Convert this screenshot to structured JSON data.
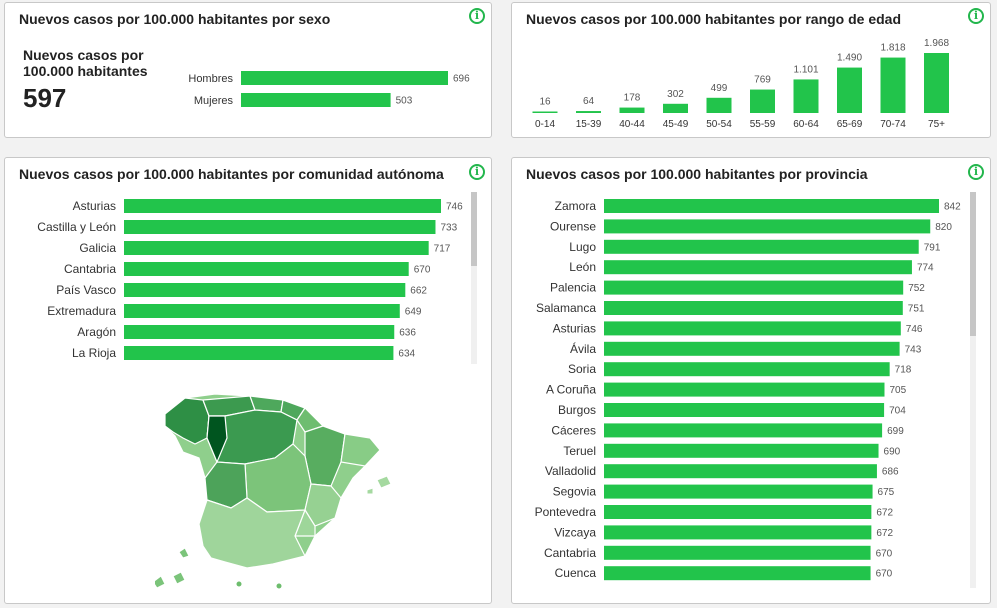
{
  "colors": {
    "bar": "#22c44b",
    "accent": "#22b64c",
    "map_dark": "#00551f",
    "map_light": "#c6e5c0"
  },
  "panels": {
    "sexo": {
      "title": "Nuevos casos por 100.000 habitantes por sexo",
      "kpi_label": "Nuevos casos por 100.000 habitantes",
      "kpi_value": "597"
    },
    "edad": {
      "title": "Nuevos casos por 100.000 habitantes por rango de edad"
    },
    "ccaa": {
      "title": "Nuevos casos por 100.000 habitantes por comunidad autónoma"
    },
    "provincia": {
      "title": "Nuevos casos por 100.000 habitantes por provincia"
    },
    "info_label": "i"
  },
  "chart_data": [
    {
      "id": "sexo",
      "type": "bar",
      "orientation": "horizontal",
      "categories": [
        "Hombres",
        "Mujeres"
      ],
      "values": [
        696,
        503
      ],
      "value_labels": [
        "696",
        "503"
      ],
      "xlim": [
        0,
        696
      ]
    },
    {
      "id": "edad",
      "type": "bar",
      "orientation": "vertical",
      "categories": [
        "0-14",
        "15-39",
        "40-44",
        "45-49",
        "50-54",
        "55-59",
        "60-64",
        "65-69",
        "70-74",
        "75+"
      ],
      "values": [
        16,
        64,
        178,
        302,
        499,
        769,
        1101,
        1490,
        1818,
        1968
      ],
      "value_labels": [
        "16",
        "64",
        "178",
        "302",
        "499",
        "769",
        "1.101",
        "1.490",
        "1.818",
        "1.968"
      ],
      "ylim": [
        0,
        1968
      ]
    },
    {
      "id": "ccaa",
      "type": "bar",
      "orientation": "horizontal",
      "categories": [
        "Asturias",
        "Castilla y León",
        "Galicia",
        "Cantabria",
        "País Vasco",
        "Extremadura",
        "Aragón",
        "La Rioja"
      ],
      "values": [
        746,
        733,
        717,
        670,
        662,
        649,
        636,
        634
      ],
      "value_labels": [
        "746",
        "733",
        "717",
        "670",
        "662",
        "649",
        "636",
        "634"
      ],
      "xlim": [
        0,
        746
      ]
    },
    {
      "id": "provincia",
      "type": "bar",
      "orientation": "horizontal",
      "categories": [
        "Zamora",
        "Ourense",
        "Lugo",
        "León",
        "Palencia",
        "Salamanca",
        "Asturias",
        "Ávila",
        "Soria",
        "A Coruña",
        "Burgos",
        "Cáceres",
        "Teruel",
        "Valladolid",
        "Segovia",
        "Pontevedra",
        "Vizcaya",
        "Cantabria",
        "Cuenca"
      ],
      "values": [
        842,
        820,
        791,
        774,
        752,
        751,
        746,
        743,
        718,
        705,
        704,
        699,
        690,
        686,
        675,
        672,
        672,
        670,
        670
      ],
      "value_labels": [
        "842",
        "820",
        "791",
        "774",
        "752",
        "751",
        "746",
        "743",
        "718",
        "705",
        "704",
        "699",
        "690",
        "686",
        "675",
        "672",
        "672",
        "670",
        "670"
      ],
      "xlim": [
        0,
        842
      ]
    }
  ]
}
